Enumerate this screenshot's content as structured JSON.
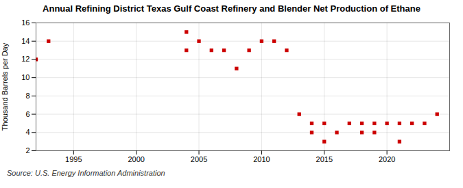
{
  "chart_data": {
    "type": "scatter",
    "title": "Annual Refining District Texas Gulf Coast Refinery and Blender Net Production of Ethane",
    "ylabel": "Thousand Barrels per Day",
    "source": "Source: U.S. Energy Information Administration",
    "x": [
      1992,
      1993,
      2004,
      2004,
      2005,
      2006,
      2007,
      2008,
      2009,
      2010,
      2011,
      2012,
      2013,
      2014,
      2014,
      2015,
      2015,
      2016,
      2017,
      2018,
      2018,
      2019,
      2019,
      2020,
      2021,
      2021,
      2022,
      2023,
      2024
    ],
    "values": [
      12,
      14,
      15,
      13,
      14,
      13,
      13,
      11,
      13,
      14,
      14,
      13,
      6,
      4,
      5,
      3,
      5,
      4,
      5,
      5,
      4,
      5,
      4,
      5,
      5,
      3,
      5,
      5,
      6
    ],
    "color": "#cc0000",
    "marker": "square",
    "xlim": [
      1992,
      2025
    ],
    "xticks": [
      1995,
      2000,
      2005,
      2010,
      2015,
      2020
    ],
    "ylim": [
      2,
      16
    ],
    "yticks": [
      2,
      4,
      6,
      8,
      10,
      12,
      14,
      16
    ],
    "grid": true
  }
}
